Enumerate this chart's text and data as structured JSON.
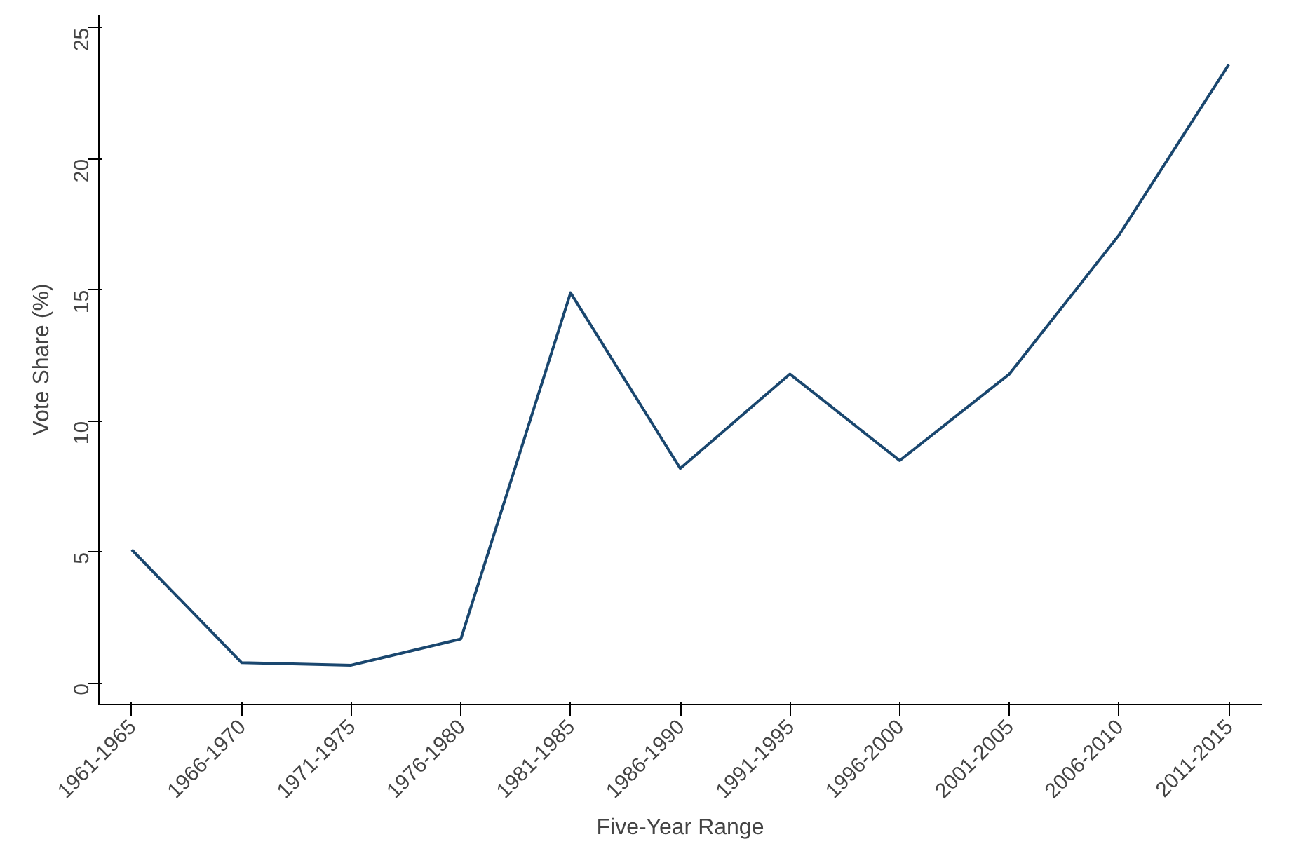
{
  "chart_data": {
    "type": "line",
    "xlabel": "Five-Year Range",
    "ylabel": "Vote Share (%)",
    "categories": [
      "1961-1965",
      "1966-1970",
      "1971-1975",
      "1976-1980",
      "1981-1985",
      "1986-1990",
      "1991-1995",
      "1996-2000",
      "2001-2005",
      "2006-2010",
      "2011-2015"
    ],
    "series": [
      {
        "color": "#1a476f",
        "values": [
          5.1,
          0.8,
          0.7,
          1.7,
          14.9,
          8.2,
          11.8,
          8.5,
          11.8,
          17.1,
          23.6
        ]
      }
    ],
    "ylim": [
      -0.8,
      25.5
    ],
    "yticks": [
      0,
      5,
      10,
      15,
      20,
      25
    ],
    "marker": "none",
    "line_style": "solid"
  }
}
